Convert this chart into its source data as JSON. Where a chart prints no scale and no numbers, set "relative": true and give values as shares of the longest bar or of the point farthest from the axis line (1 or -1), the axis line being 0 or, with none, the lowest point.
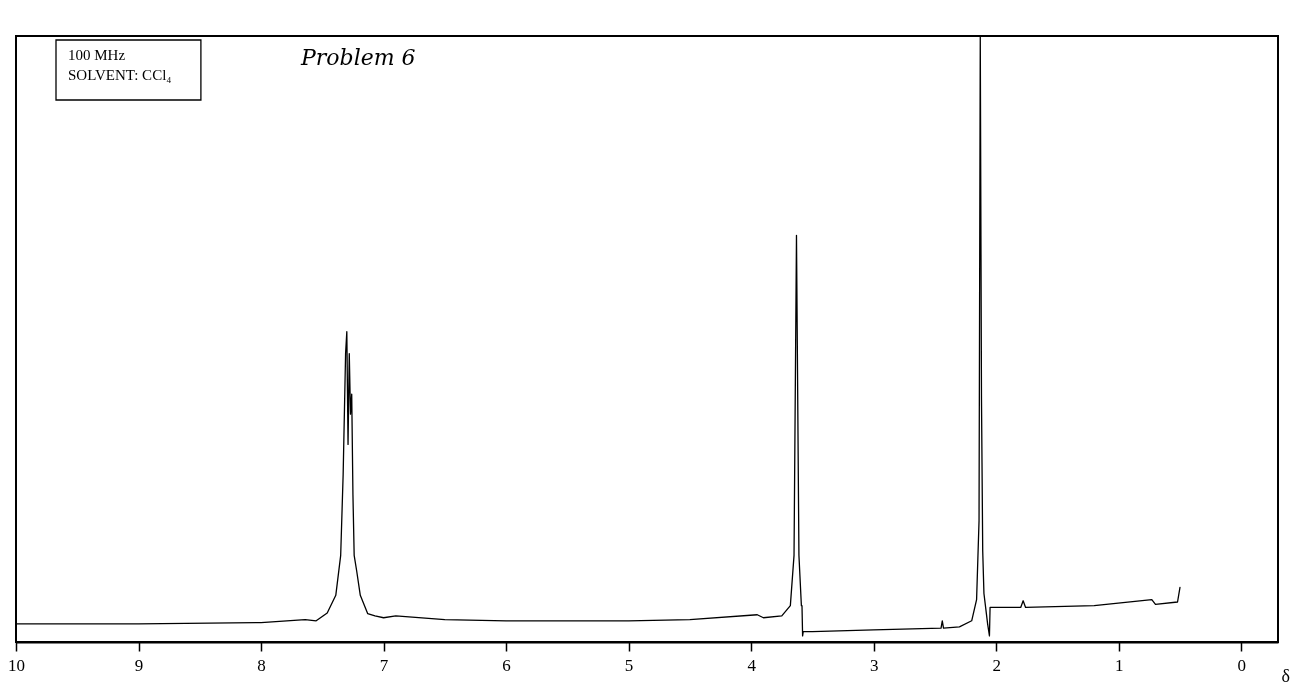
{
  "chart_data": {
    "type": "line",
    "relative": true,
    "xlabel": "δ",
    "annotations": [
      "100 MHz\nSOLVENT: CCl₄",
      "Problem 6"
    ],
    "xlim": [
      10,
      -0.3
    ],
    "xticks": [
      10,
      9,
      8,
      7,
      6,
      5,
      4,
      3,
      2,
      1,
      0
    ],
    "x": [
      10.0,
      9.0,
      8.0,
      7.64,
      7.55,
      7.46,
      7.39,
      7.35,
      7.33,
      7.31,
      7.3,
      7.29,
      7.28,
      7.27,
      7.26,
      7.25,
      7.24,
      7.22,
      7.19,
      7.13,
      7.07,
      7.0,
      6.9,
      6.5,
      6.0,
      5.0,
      4.5,
      3.95,
      3.9,
      3.75,
      3.68,
      3.65,
      3.63,
      3.61,
      3.59,
      3.585,
      3.58,
      3.575,
      3.5,
      3.0,
      2.45,
      2.44,
      2.43,
      2.3,
      2.2,
      2.16,
      2.14,
      2.13,
      2.12,
      2.11,
      2.1,
      2.07,
      2.055,
      2.05,
      1.8,
      1.78,
      1.76,
      1.2,
      0.73,
      0.7,
      0.52,
      0.5
    ],
    "series": [
      {
        "color": "#000000",
        "values": [
          0.03,
          0.03,
          0.032,
          0.037,
          0.035,
          0.048,
          0.077,
          0.143,
          0.276,
          0.476,
          0.512,
          0.326,
          0.476,
          0.376,
          0.409,
          0.243,
          0.143,
          0.118,
          0.077,
          0.047,
          0.043,
          0.04,
          0.043,
          0.037,
          0.035,
          0.035,
          0.037,
          0.045,
          0.04,
          0.043,
          0.06,
          0.143,
          0.671,
          0.143,
          0.06,
          0.06,
          0.01,
          0.017,
          0.017,
          0.02,
          0.023,
          0.035,
          0.023,
          0.025,
          0.035,
          0.07,
          0.2,
          1.0,
          0.4,
          0.15,
          0.08,
          0.03,
          0.01,
          0.057,
          0.057,
          0.068,
          0.057,
          0.06,
          0.07,
          0.062,
          0.066,
          0.09
        ]
      }
    ]
  }
}
